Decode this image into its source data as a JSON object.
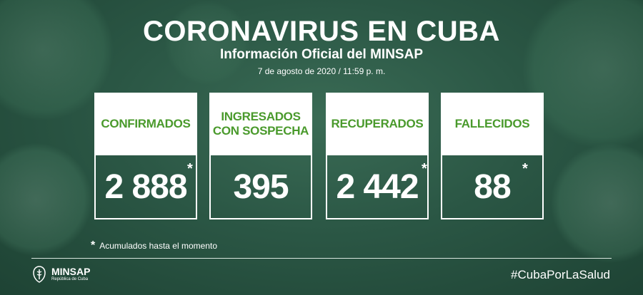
{
  "header": {
    "title": "CORONAVIRUS EN CUBA",
    "subtitle": "Información Oficial del MINSAP",
    "date": "7 de agosto de 2020 / 11:59 p. m."
  },
  "stats": [
    {
      "label": "CONFIRMADOS",
      "value": "2 888",
      "asterisk": "*"
    },
    {
      "label": "INGRESADOS CON SOSPECHA",
      "value": "395",
      "asterisk": ""
    },
    {
      "label": "RECUPERADOS",
      "value": "2 442",
      "asterisk": "*"
    },
    {
      "label": "FALLECIDOS",
      "value": "88",
      "asterisk": "*"
    }
  ],
  "footnote": {
    "mark": "*",
    "text": "Acumulados hasta el momento"
  },
  "footer": {
    "logo_name": "MINSAP",
    "logo_sub": "República de Cuba",
    "hashtag": "#CubaPorLaSalud"
  },
  "colors": {
    "accent_green": "#4a9a2c",
    "background": "#2b5745"
  }
}
